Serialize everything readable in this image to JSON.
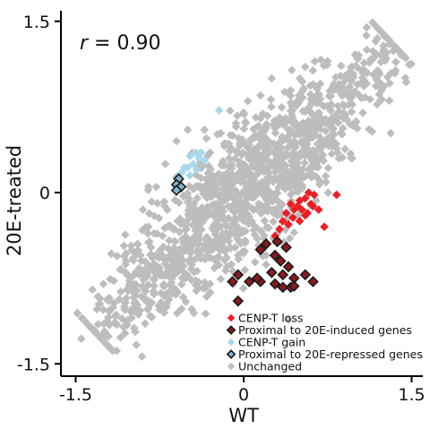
{
  "chart_data": {
    "type": "scatter",
    "xlabel": "WT",
    "ylabel": "20E-treated",
    "xlim": [
      -1.5,
      1.5
    ],
    "ylim": [
      -1.5,
      1.5
    ],
    "xticks": [
      -1.5,
      0,
      1.5
    ],
    "yticks": [
      -1.5,
      0,
      1.5
    ],
    "x_tick_labels": [
      "-1.5",
      "0",
      "1.5"
    ],
    "y_tick_labels": [
      "-1.5",
      "0",
      "1.5"
    ],
    "grid": false,
    "legend_position": "bottom-right",
    "annotation": {
      "symbol": "r",
      "text": " = 0.90",
      "value": 0.9
    },
    "series": [
      {
        "name": "Unchanged",
        "color": "#bdbdbd",
        "marker": "diamond",
        "distribution": {
          "correlation": 0.9,
          "center": [
            0.0,
            0.0
          ],
          "main_axis": {
            "from": [
              -1.3,
              -1.25
            ],
            "to": [
              1.35,
              1.28
            ]
          },
          "width_sd": 0.09,
          "count": 1400
        },
        "outliers": [
          [
            -1.45,
            -1.28
          ],
          [
            -1.35,
            -0.85
          ],
          [
            -1.2,
            -0.95
          ],
          [
            -0.95,
            -0.45
          ],
          [
            -0.85,
            -0.3
          ],
          [
            -0.9,
            -0.15
          ],
          [
            -0.7,
            0.25
          ],
          [
            -0.85,
            0.05
          ],
          [
            -0.6,
            0.45
          ],
          [
            -0.5,
            0.55
          ],
          [
            -0.35,
            0.55
          ],
          [
            0.0,
            0.7
          ],
          [
            0.15,
            0.85
          ],
          [
            0.25,
            1.0
          ],
          [
            0.55,
            1.1
          ],
          [
            0.75,
            1.15
          ],
          [
            1.0,
            1.2
          ],
          [
            1.1,
            1.25
          ],
          [
            1.25,
            1.25
          ],
          [
            1.3,
            1.3
          ],
          [
            0.85,
            0.95
          ],
          [
            0.95,
            0.6
          ],
          [
            0.7,
            0.4
          ],
          [
            0.85,
            0.3
          ],
          [
            0.5,
            0.2
          ],
          [
            0.35,
            -0.45
          ],
          [
            0.45,
            -0.35
          ],
          [
            -0.15,
            -0.65
          ],
          [
            -0.3,
            -0.8
          ],
          [
            -0.55,
            -0.75
          ],
          [
            -0.65,
            -0.65
          ],
          [
            -0.05,
            -0.55
          ],
          [
            0.2,
            -0.55
          ],
          [
            -1.05,
            -0.6
          ],
          [
            -0.3,
            0.35
          ],
          [
            -0.1,
            0.5
          ],
          [
            0.15,
            0.65
          ],
          [
            -1.25,
            -1.15
          ],
          [
            -0.75,
            -1.0
          ],
          [
            0.3,
            -0.2
          ]
        ]
      },
      {
        "name": "CENP-T loss",
        "color": "#ec1f24",
        "marker": "diamond",
        "points": [
          [
            0.58,
            0.0
          ],
          [
            0.63,
            -0.02
          ],
          [
            0.55,
            -0.05
          ],
          [
            0.5,
            -0.07
          ],
          [
            0.48,
            -0.12
          ],
          [
            0.42,
            -0.1
          ],
          [
            0.6,
            -0.1
          ],
          [
            0.52,
            -0.15
          ],
          [
            0.62,
            -0.12
          ],
          [
            0.45,
            -0.15
          ],
          [
            0.67,
            -0.15
          ],
          [
            0.38,
            -0.18
          ],
          [
            0.44,
            -0.22
          ],
          [
            0.57,
            -0.18
          ],
          [
            0.35,
            -0.25
          ],
          [
            0.4,
            -0.28
          ],
          [
            0.32,
            -0.32
          ],
          [
            0.5,
            -0.25
          ],
          [
            0.83,
            -0.02
          ],
          [
            0.72,
            -0.3
          ],
          [
            0.28,
            -0.38
          ],
          [
            0.55,
            -0.2
          ]
        ]
      },
      {
        "name": "Proximal to 20E-induced genes",
        "color": "#8b1a1f",
        "marker": "diamond-outlined",
        "points": [
          [
            0.3,
            -0.43
          ],
          [
            0.2,
            -0.45
          ],
          [
            0.38,
            -0.48
          ],
          [
            0.28,
            -0.55
          ],
          [
            0.15,
            -0.5
          ],
          [
            0.33,
            -0.6
          ],
          [
            0.4,
            -0.65
          ],
          [
            0.25,
            -0.7
          ],
          [
            0.35,
            -0.72
          ],
          [
            0.45,
            -0.75
          ],
          [
            0.55,
            -0.72
          ],
          [
            -0.05,
            -0.72
          ],
          [
            0.15,
            -0.78
          ],
          [
            0.28,
            -0.8
          ],
          [
            0.42,
            -0.83
          ],
          [
            0.12,
            -0.75
          ],
          [
            0.05,
            -0.78
          ],
          [
            -0.1,
            -0.78
          ],
          [
            0.62,
            -0.78
          ],
          [
            0.35,
            -0.83
          ],
          [
            0.45,
            -0.82
          ],
          [
            -0.05,
            -0.95
          ]
        ]
      },
      {
        "name": "CENP-T gain",
        "color": "#a8d8ea",
        "marker": "diamond",
        "points": [
          [
            -0.22,
            0.72
          ],
          [
            -0.48,
            0.32
          ],
          [
            -0.43,
            0.35
          ],
          [
            -0.38,
            0.35
          ],
          [
            -0.4,
            0.3
          ],
          [
            -0.35,
            0.28
          ],
          [
            -0.45,
            0.25
          ],
          [
            -0.5,
            0.22
          ],
          [
            -0.42,
            0.2
          ],
          [
            -0.55,
            0.18
          ],
          [
            -0.53,
            0.22
          ],
          [
            -0.48,
            0.15
          ]
        ]
      },
      {
        "name": "Proximal to 20E-repressed genes",
        "color": "#7fb8cc",
        "marker": "diamond-outlined",
        "points": [
          [
            -0.58,
            0.12
          ],
          [
            -0.6,
            0.07
          ],
          [
            -0.56,
            0.05
          ],
          [
            -0.6,
            0.02
          ]
        ]
      }
    ]
  },
  "legend": [
    {
      "label": "CENP-T loss",
      "color": "#ec1f24",
      "marker": "diamond"
    },
    {
      "label": "Proximal to 20E-induced genes",
      "color": "#8b1a1f",
      "marker": "diamond-outlined"
    },
    {
      "label": "CENP-T gain",
      "color": "#a8d8ea",
      "marker": "diamond"
    },
    {
      "label": "Proximal to 20E-repressed genes",
      "color": "#7fb8cc",
      "marker": "diamond-outlined"
    },
    {
      "label": "Unchanged",
      "color": "#bdbdbd",
      "marker": "diamond"
    }
  ]
}
